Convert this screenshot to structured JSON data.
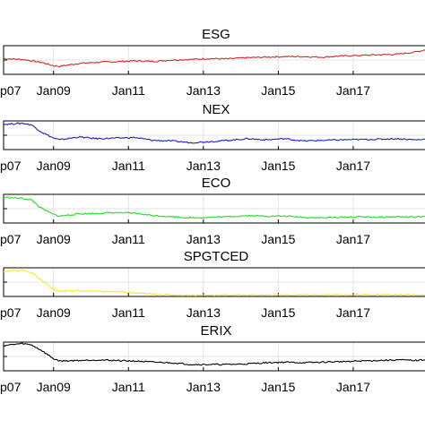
{
  "chart_data": [
    {
      "type": "line",
      "title": "ESG",
      "color": "#d62728",
      "grid": true,
      "xlim": [
        "2007-09",
        "2018-12"
      ],
      "ylim": [
        0,
        1
      ],
      "x_tick_labels": [
        "p07",
        "Jan09",
        "Jan11",
        "Jan13",
        "Jan15",
        "Jan17"
      ],
      "x": [
        "2007-09",
        "2008-03",
        "2008-09",
        "2009-01",
        "2009-03",
        "2009-09",
        "2010-03",
        "2010-09",
        "2011-03",
        "2011-09",
        "2012-03",
        "2012-09",
        "2013-03",
        "2013-09",
        "2014-03",
        "2014-09",
        "2015-03",
        "2015-09",
        "2016-03",
        "2016-09",
        "2017-03",
        "2017-09",
        "2018-03",
        "2018-09",
        "2018-12"
      ],
      "series": [
        {
          "values": [
            0.55,
            0.52,
            0.42,
            0.3,
            0.28,
            0.38,
            0.42,
            0.44,
            0.47,
            0.45,
            0.5,
            0.52,
            0.55,
            0.54,
            0.58,
            0.6,
            0.62,
            0.62,
            0.6,
            0.64,
            0.66,
            0.68,
            0.7,
            0.78,
            0.85
          ]
        }
      ]
    },
    {
      "type": "line",
      "title": "NEX",
      "color": "#1f1fbf",
      "grid": true,
      "xlim": [
        "2007-09",
        "2018-12"
      ],
      "ylim": [
        0,
        1
      ],
      "x_tick_labels": [
        "p07",
        "Jan09",
        "Jan11",
        "Jan13",
        "Jan15",
        "Jan17"
      ],
      "x": [
        "2007-09",
        "2008-03",
        "2008-06",
        "2008-09",
        "2009-01",
        "2009-03",
        "2009-09",
        "2010-03",
        "2010-09",
        "2011-03",
        "2011-09",
        "2012-03",
        "2012-09",
        "2013-03",
        "2013-09",
        "2014-03",
        "2014-09",
        "2015-03",
        "2015-09",
        "2016-03",
        "2016-09",
        "2017-03",
        "2017-09",
        "2018-03",
        "2018-09",
        "2018-12"
      ],
      "series": [
        {
          "values": [
            0.88,
            0.92,
            0.86,
            0.62,
            0.4,
            0.34,
            0.44,
            0.38,
            0.4,
            0.42,
            0.32,
            0.3,
            0.24,
            0.28,
            0.32,
            0.38,
            0.34,
            0.38,
            0.3,
            0.32,
            0.34,
            0.35,
            0.36,
            0.38,
            0.34,
            0.36
          ]
        }
      ]
    },
    {
      "type": "line",
      "title": "ECO",
      "color": "#22dd22",
      "grid": true,
      "xlim": [
        "2007-09",
        "2018-12"
      ],
      "ylim": [
        0,
        1
      ],
      "x_tick_labels": [
        "p07",
        "Jan09",
        "Jan11",
        "Jan13",
        "Jan15",
        "Jan17"
      ],
      "x": [
        "2007-09",
        "2008-03",
        "2008-06",
        "2008-09",
        "2009-01",
        "2009-03",
        "2009-09",
        "2010-03",
        "2010-09",
        "2011-03",
        "2011-09",
        "2012-03",
        "2012-09",
        "2013-03",
        "2013-09",
        "2014-03",
        "2014-09",
        "2015-03",
        "2015-09",
        "2016-03",
        "2016-09",
        "2017-03",
        "2017-09",
        "2018-03",
        "2018-09",
        "2018-12"
      ],
      "series": [
        {
          "values": [
            0.9,
            0.86,
            0.8,
            0.52,
            0.3,
            0.24,
            0.32,
            0.34,
            0.36,
            0.34,
            0.26,
            0.22,
            0.18,
            0.2,
            0.22,
            0.26,
            0.24,
            0.24,
            0.2,
            0.18,
            0.2,
            0.22,
            0.2,
            0.22,
            0.2,
            0.22
          ]
        }
      ]
    },
    {
      "type": "line",
      "title": "SPGTCED",
      "color": "#f2ea1c",
      "grid": true,
      "xlim": [
        "2007-09",
        "2018-12"
      ],
      "ylim": [
        0,
        1
      ],
      "x_tick_labels": [
        "p07",
        "Jan09",
        "Jan11",
        "Jan13",
        "Jan15",
        "Jan17"
      ],
      "x": [
        "2007-09",
        "2008-03",
        "2008-06",
        "2008-09",
        "2009-01",
        "2009-03",
        "2009-09",
        "2010-03",
        "2010-09",
        "2011-03",
        "2011-09",
        "2012-03",
        "2012-09",
        "2013-03",
        "2013-09",
        "2014-03",
        "2014-09",
        "2015-03",
        "2015-09",
        "2016-03",
        "2016-09",
        "2017-03",
        "2017-09",
        "2018-03",
        "2018-09",
        "2018-12"
      ],
      "series": [
        {
          "values": [
            0.88,
            0.92,
            0.84,
            0.58,
            0.26,
            0.18,
            0.2,
            0.18,
            0.16,
            0.12,
            0.08,
            0.05,
            0.04,
            0.04,
            0.05,
            0.05,
            0.05,
            0.05,
            0.05,
            0.05,
            0.05,
            0.06,
            0.06,
            0.06,
            0.05,
            0.05
          ]
        }
      ]
    },
    {
      "type": "line",
      "title": "ERIX",
      "color": "#000000",
      "grid": true,
      "xlim": [
        "2007-09",
        "2018-12"
      ],
      "ylim": [
        0,
        1
      ],
      "x_tick_labels": [
        "p07",
        "Jan09",
        "Jan11",
        "Jan13",
        "Jan15",
        "Jan17"
      ],
      "x": [
        "2007-09",
        "2008-03",
        "2008-06",
        "2008-09",
        "2009-01",
        "2009-03",
        "2009-09",
        "2010-03",
        "2010-09",
        "2011-03",
        "2011-09",
        "2012-03",
        "2012-09",
        "2013-03",
        "2013-09",
        "2014-03",
        "2014-09",
        "2015-03",
        "2015-09",
        "2016-03",
        "2016-09",
        "2017-03",
        "2017-09",
        "2018-03",
        "2018-09",
        "2018-12"
      ],
      "series": [
        {
          "values": [
            0.88,
            0.95,
            0.9,
            0.72,
            0.42,
            0.34,
            0.36,
            0.38,
            0.36,
            0.34,
            0.3,
            0.28,
            0.22,
            0.22,
            0.22,
            0.24,
            0.28,
            0.3,
            0.28,
            0.3,
            0.32,
            0.34,
            0.36,
            0.38,
            0.36,
            0.38
          ]
        }
      ]
    }
  ]
}
